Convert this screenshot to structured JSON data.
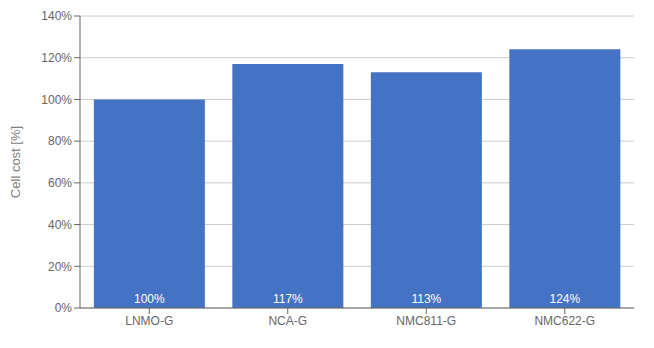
{
  "chart_data": {
    "type": "bar",
    "categories": [
      "LNMO-G",
      "NCA-G",
      "NMC811-G",
      "NMC622-G"
    ],
    "values": [
      100,
      117,
      113,
      124
    ],
    "value_labels": [
      "100%",
      "117%",
      "113%",
      "124%"
    ],
    "data_labels": true,
    "color": "#4472c4",
    "ylabel": "Cell cost [%]",
    "ylim": [
      0,
      140
    ],
    "yticks": [
      {
        "value": 0,
        "label": "0%"
      },
      {
        "value": 20,
        "label": "20%"
      },
      {
        "value": 40,
        "label": "40%"
      },
      {
        "value": 60,
        "label": "60%"
      },
      {
        "value": 80,
        "label": "80%"
      },
      {
        "value": 100,
        "label": "100%"
      },
      {
        "value": 120,
        "label": "120%"
      },
      {
        "value": 140,
        "label": "140%"
      }
    ],
    "grid": true
  }
}
